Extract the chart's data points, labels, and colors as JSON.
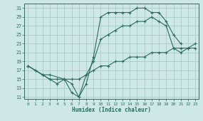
{
  "xlabel": "Humidex (Indice chaleur)",
  "xlim": [
    -0.5,
    23.5
  ],
  "ylim": [
    10.5,
    32
  ],
  "yticks": [
    11,
    13,
    15,
    17,
    19,
    21,
    23,
    25,
    27,
    29,
    31
  ],
  "xticks": [
    0,
    1,
    2,
    3,
    4,
    5,
    6,
    7,
    8,
    9,
    10,
    11,
    12,
    13,
    14,
    15,
    16,
    17,
    18,
    19,
    20,
    21,
    22,
    23
  ],
  "bg_color": "#cde8e5",
  "line_color": "#2e6b60",
  "grid_color": "#a8ccc8",
  "lines": [
    {
      "x": [
        0,
        1,
        2,
        3,
        4,
        5,
        6,
        7,
        8,
        9,
        10,
        11,
        12,
        13,
        14,
        15,
        16,
        17,
        18,
        19,
        20,
        21
      ],
      "y": [
        18,
        17,
        16,
        15,
        14,
        15,
        12,
        11,
        14,
        20,
        29,
        30,
        30,
        30,
        30,
        31,
        31,
        30,
        30,
        28,
        25,
        23
      ]
    },
    {
      "x": [
        0,
        2,
        3,
        4,
        5,
        6,
        7,
        8,
        9,
        10,
        11,
        12,
        13,
        14,
        15,
        16,
        17,
        18,
        19,
        20,
        21,
        22,
        23
      ],
      "y": [
        18,
        16,
        15,
        15,
        15,
        14,
        11,
        16,
        19,
        24,
        25,
        26,
        27,
        27,
        28,
        28,
        29,
        28,
        27,
        22,
        21,
        22,
        23
      ]
    },
    {
      "x": [
        0,
        1,
        2,
        3,
        5,
        6,
        7,
        8,
        9,
        10,
        11,
        12,
        13,
        14,
        15,
        16,
        17,
        18,
        19,
        20,
        21,
        22,
        23
      ],
      "y": [
        18,
        17,
        16,
        16,
        15,
        15,
        15,
        16,
        17,
        18,
        18,
        19,
        19,
        20,
        20,
        20,
        21,
        21,
        21,
        22,
        22,
        22,
        22
      ]
    }
  ]
}
